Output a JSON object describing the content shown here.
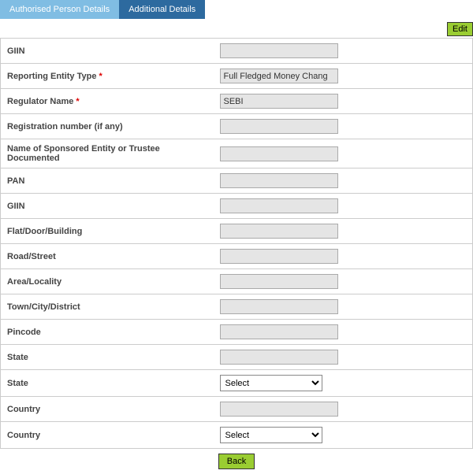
{
  "tabs": {
    "authorised": "Authorised Person Details",
    "additional": "Additional Details"
  },
  "buttons": {
    "edit": "Edit",
    "back": "Back"
  },
  "labels": {
    "giin1": "GIIN",
    "reporting_entity_type": "Reporting Entity Type",
    "regulator_name": "Regulator Name",
    "registration_number": "Registration number (if any)",
    "sponsored_entity": "Name of Sponsored Entity or Trustee Documented",
    "pan": "PAN",
    "giin2": "GIIN",
    "flat": "Flat/Door/Building",
    "road": "Road/Street",
    "area": "Area/Locality",
    "town": "Town/City/District",
    "pincode": "Pincode",
    "state_text": "State",
    "state_select": "State",
    "country_text": "Country",
    "country_select": "Country"
  },
  "values": {
    "giin1": "",
    "reporting_entity_type": "Full Fledged Money Chang",
    "regulator_name": "SEBI",
    "registration_number": "",
    "sponsored_entity": "",
    "pan": "",
    "giin2": "",
    "flat": "",
    "road": "",
    "area": "",
    "town": "",
    "pincode": "",
    "state_text": "",
    "state_select": "Select",
    "country_text": "",
    "country_select": "Select"
  },
  "required_mark": "*"
}
